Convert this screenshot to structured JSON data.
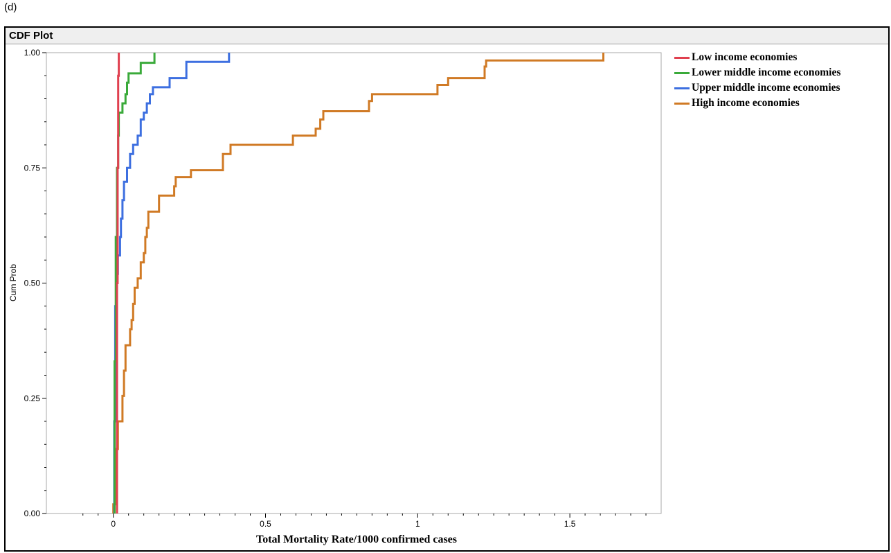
{
  "panel_label": "(d)",
  "window_title": "CDF Plot",
  "colors": {
    "low": "#e0404f",
    "lower_middle": "#3aaa3a",
    "upper_middle": "#3d6fe0",
    "high": "#d07a25",
    "plot_border": "#a8a8a8",
    "title_bar": "#efefef"
  },
  "chart_data": {
    "type": "line",
    "xlabel": "Total Mortality Rate/1000 confirmed cases",
    "ylabel": "Cum Prob",
    "xlim": [
      -0.22,
      1.8
    ],
    "ylim": [
      0,
      1
    ],
    "x_ticks": [
      {
        "value": 0,
        "label": "0"
      },
      {
        "value": 0.5,
        "label": "0.5"
      },
      {
        "value": 1,
        "label": "1"
      },
      {
        "value": 1.5,
        "label": "1.5"
      }
    ],
    "y_ticks": [
      {
        "value": 0,
        "label": "0.00"
      },
      {
        "value": 0.25,
        "label": "0.25"
      },
      {
        "value": 0.5,
        "label": "0.50"
      },
      {
        "value": 0.75,
        "label": "0.75"
      },
      {
        "value": 1,
        "label": "1.00"
      }
    ],
    "grid": false,
    "legend_position": "right",
    "series": [
      {
        "name": "Low income economies",
        "color_key": "low",
        "points": [
          [
            0.012,
            0.0
          ],
          [
            0.012,
            0.5
          ],
          [
            0.014,
            0.5
          ],
          [
            0.014,
            0.75
          ],
          [
            0.016,
            0.75
          ],
          [
            0.016,
            0.95
          ],
          [
            0.018,
            0.95
          ],
          [
            0.018,
            1.0
          ]
        ]
      },
      {
        "name": "Lower middle income economies",
        "color_key": "lower_middle",
        "points": [
          [
            0.004,
            0.0
          ],
          [
            0.004,
            0.33
          ],
          [
            0.008,
            0.33
          ],
          [
            0.008,
            0.6
          ],
          [
            0.012,
            0.6
          ],
          [
            0.012,
            0.75
          ],
          [
            0.016,
            0.75
          ],
          [
            0.016,
            0.82
          ],
          [
            0.018,
            0.82
          ],
          [
            0.018,
            0.87
          ],
          [
            0.03,
            0.87
          ],
          [
            0.03,
            0.89
          ],
          [
            0.04,
            0.89
          ],
          [
            0.04,
            0.91
          ],
          [
            0.045,
            0.91
          ],
          [
            0.045,
            0.935
          ],
          [
            0.05,
            0.935
          ],
          [
            0.05,
            0.955
          ],
          [
            0.09,
            0.955
          ],
          [
            0.09,
            0.978
          ],
          [
            0.135,
            0.978
          ],
          [
            0.135,
            1.0
          ]
        ]
      },
      {
        "name": "Upper middle income economies",
        "color_key": "upper_middle",
        "points": [
          [
            0.003,
            0.0
          ],
          [
            0.003,
            0.2
          ],
          [
            0.006,
            0.2
          ],
          [
            0.006,
            0.45
          ],
          [
            0.01,
            0.45
          ],
          [
            0.01,
            0.52
          ],
          [
            0.015,
            0.52
          ],
          [
            0.015,
            0.56
          ],
          [
            0.022,
            0.56
          ],
          [
            0.022,
            0.6
          ],
          [
            0.025,
            0.6
          ],
          [
            0.025,
            0.64
          ],
          [
            0.03,
            0.64
          ],
          [
            0.03,
            0.68
          ],
          [
            0.035,
            0.68
          ],
          [
            0.035,
            0.72
          ],
          [
            0.045,
            0.72
          ],
          [
            0.045,
            0.75
          ],
          [
            0.055,
            0.75
          ],
          [
            0.055,
            0.78
          ],
          [
            0.065,
            0.78
          ],
          [
            0.065,
            0.8
          ],
          [
            0.08,
            0.8
          ],
          [
            0.08,
            0.82
          ],
          [
            0.09,
            0.82
          ],
          [
            0.09,
            0.855
          ],
          [
            0.1,
            0.855
          ],
          [
            0.1,
            0.87
          ],
          [
            0.11,
            0.87
          ],
          [
            0.11,
            0.89
          ],
          [
            0.12,
            0.89
          ],
          [
            0.12,
            0.91
          ],
          [
            0.13,
            0.91
          ],
          [
            0.13,
            0.925
          ],
          [
            0.185,
            0.925
          ],
          [
            0.185,
            0.945
          ],
          [
            0.24,
            0.945
          ],
          [
            0.24,
            0.98
          ],
          [
            0.38,
            0.98
          ],
          [
            0.38,
            1.0
          ]
        ]
      },
      {
        "name": "High income economies",
        "color_key": "high",
        "points": [
          [
            0.0,
            0.0
          ],
          [
            0.0,
            0.02
          ],
          [
            0.01,
            0.02
          ],
          [
            0.01,
            0.14
          ],
          [
            0.015,
            0.14
          ],
          [
            0.015,
            0.2
          ],
          [
            0.03,
            0.2
          ],
          [
            0.03,
            0.255
          ],
          [
            0.035,
            0.255
          ],
          [
            0.035,
            0.31
          ],
          [
            0.04,
            0.31
          ],
          [
            0.04,
            0.365
          ],
          [
            0.055,
            0.365
          ],
          [
            0.055,
            0.4
          ],
          [
            0.06,
            0.4
          ],
          [
            0.06,
            0.42
          ],
          [
            0.065,
            0.42
          ],
          [
            0.065,
            0.455
          ],
          [
            0.07,
            0.455
          ],
          [
            0.07,
            0.49
          ],
          [
            0.08,
            0.49
          ],
          [
            0.08,
            0.51
          ],
          [
            0.09,
            0.51
          ],
          [
            0.09,
            0.545
          ],
          [
            0.1,
            0.545
          ],
          [
            0.1,
            0.565
          ],
          [
            0.105,
            0.565
          ],
          [
            0.105,
            0.6
          ],
          [
            0.11,
            0.6
          ],
          [
            0.11,
            0.62
          ],
          [
            0.115,
            0.62
          ],
          [
            0.115,
            0.655
          ],
          [
            0.15,
            0.655
          ],
          [
            0.15,
            0.69
          ],
          [
            0.2,
            0.69
          ],
          [
            0.2,
            0.71
          ],
          [
            0.205,
            0.71
          ],
          [
            0.205,
            0.73
          ],
          [
            0.255,
            0.73
          ],
          [
            0.255,
            0.745
          ],
          [
            0.36,
            0.745
          ],
          [
            0.36,
            0.78
          ],
          [
            0.385,
            0.78
          ],
          [
            0.385,
            0.8
          ],
          [
            0.59,
            0.8
          ],
          [
            0.59,
            0.82
          ],
          [
            0.665,
            0.82
          ],
          [
            0.665,
            0.835
          ],
          [
            0.68,
            0.835
          ],
          [
            0.68,
            0.855
          ],
          [
            0.69,
            0.855
          ],
          [
            0.69,
            0.873
          ],
          [
            0.84,
            0.873
          ],
          [
            0.84,
            0.895
          ],
          [
            0.85,
            0.895
          ],
          [
            0.85,
            0.91
          ],
          [
            1.065,
            0.91
          ],
          [
            1.065,
            0.93
          ],
          [
            1.1,
            0.93
          ],
          [
            1.1,
            0.945
          ],
          [
            1.22,
            0.945
          ],
          [
            1.22,
            0.97
          ],
          [
            1.225,
            0.97
          ],
          [
            1.225,
            0.983
          ],
          [
            1.61,
            0.983
          ],
          [
            1.61,
            1.0
          ]
        ]
      }
    ]
  }
}
